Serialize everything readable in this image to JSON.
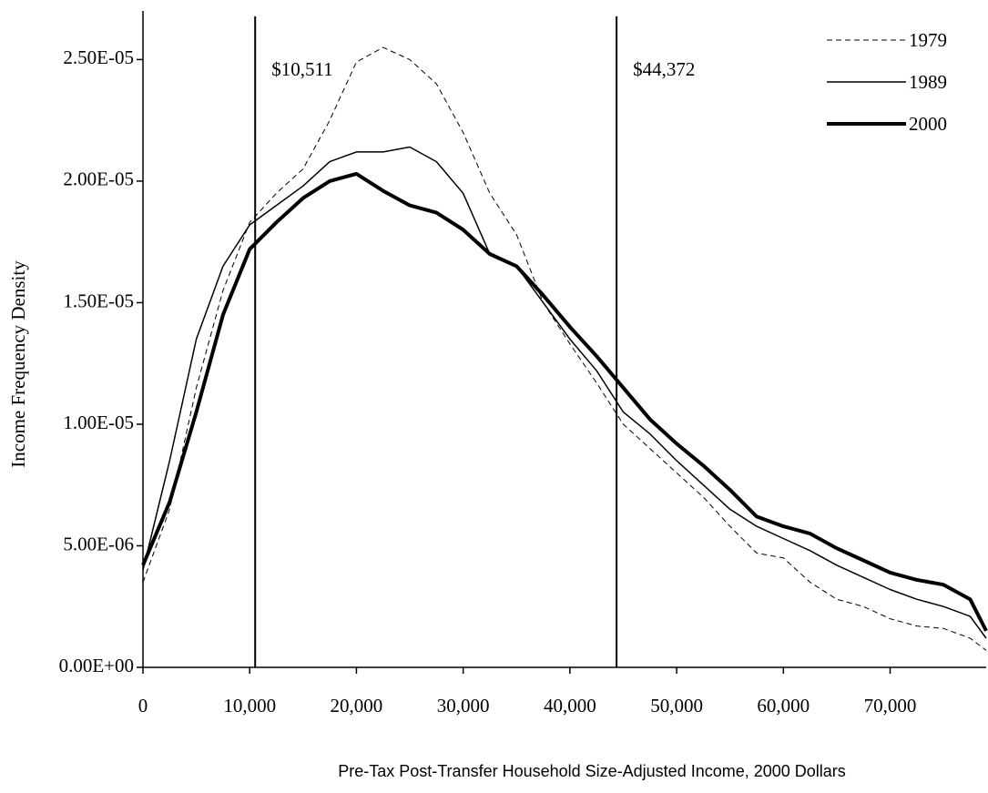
{
  "chart_data": {
    "type": "line",
    "y_label": "Income Frequency Density",
    "x_label": "Pre-Tax Post-Transfer Household Size-Adjusted Income, 2000 Dollars",
    "x": [
      0,
      2500,
      5000,
      7500,
      10000,
      12500,
      15000,
      17500,
      20000,
      22500,
      25000,
      27500,
      30000,
      32500,
      35000,
      37500,
      40000,
      42500,
      45000,
      47500,
      50000,
      52500,
      55000,
      57500,
      60000,
      62500,
      65000,
      67500,
      70000,
      72500,
      75000,
      77500,
      79000
    ],
    "series": [
      {
        "name": "1979",
        "color": "#000000",
        "dash": "6 4",
        "width": 1,
        "values": [
          3.5e-06,
          6.5e-06,
          1.15e-05,
          1.55e-05,
          1.83e-05,
          1.95e-05,
          2.05e-05,
          2.25e-05,
          2.49e-05,
          2.55e-05,
          2.5e-05,
          2.4e-05,
          2.2e-05,
          1.95e-05,
          1.78e-05,
          1.5e-05,
          1.33e-05,
          1.17e-05,
          1e-05,
          9e-06,
          8e-06,
          7e-06,
          5.8e-06,
          4.7e-06,
          4.5e-06,
          3.5e-06,
          2.8e-06,
          2.5e-06,
          2e-06,
          1.7e-06,
          1.6e-06,
          1.2e-06,
          7e-07
        ]
      },
      {
        "name": "1989",
        "color": "#000000",
        "dash": "none",
        "width": 1.5,
        "values": [
          4e-06,
          8.5e-06,
          1.35e-05,
          1.65e-05,
          1.82e-05,
          1.9e-05,
          1.98e-05,
          2.08e-05,
          2.12e-05,
          2.12e-05,
          2.14e-05,
          2.08e-05,
          1.95e-05,
          1.7e-05,
          1.65e-05,
          1.5e-05,
          1.35e-05,
          1.22e-05,
          1.05e-05,
          9.6e-06,
          8.5e-06,
          7.5e-06,
          6.5e-06,
          5.8e-06,
          5.3e-06,
          4.8e-06,
          4.2e-06,
          3.7e-06,
          3.2e-06,
          2.8e-06,
          2.5e-06,
          2.1e-06,
          1.2e-06
        ]
      },
      {
        "name": "2000",
        "color": "#000000",
        "dash": "none",
        "width": 4,
        "values": [
          4.2e-06,
          6.8e-06,
          1.05e-05,
          1.45e-05,
          1.72e-05,
          1.83e-05,
          1.93e-05,
          2e-05,
          2.03e-05,
          1.96e-05,
          1.9e-05,
          1.87e-05,
          1.8e-05,
          1.7e-05,
          1.65e-05,
          1.53e-05,
          1.4e-05,
          1.28e-05,
          1.15e-05,
          1.02e-05,
          9.2e-06,
          8.3e-06,
          7.3e-06,
          6.2e-06,
          5.8e-06,
          5.5e-06,
          4.9e-06,
          4.4e-06,
          3.9e-06,
          3.6e-06,
          3.4e-06,
          2.8e-06,
          1.5e-06
        ]
      }
    ],
    "vlines": [
      {
        "x": 10511,
        "label": "$10,511"
      },
      {
        "x": 44372,
        "label": "$44,372"
      }
    ],
    "xlim": [
      0,
      79000
    ],
    "ylim": [
      0,
      2.7e-05
    ],
    "xticks": [
      0,
      {
        "value": 10000,
        "label": "10,000"
      },
      {
        "value": 20000,
        "label": "20,000"
      },
      {
        "value": 30000,
        "label": "30,000"
      },
      {
        "value": 40000,
        "label": "40,000"
      },
      {
        "value": 50000,
        "label": "50,000"
      },
      {
        "value": 60000,
        "label": "60,000"
      },
      {
        "value": 70000,
        "label": "70,000"
      }
    ],
    "yticks": [
      {
        "value": 0,
        "label": "0.00E+00"
      },
      {
        "value": 5e-06,
        "label": "5.00E-06"
      },
      {
        "value": 1e-05,
        "label": "1.00E-05"
      },
      {
        "value": 1.5e-05,
        "label": "1.50E-05"
      },
      {
        "value": 2e-05,
        "label": "2.00E-05"
      },
      {
        "value": 2.5e-05,
        "label": "2.50E-05"
      }
    ],
    "grid": false,
    "legend": "top-right"
  }
}
